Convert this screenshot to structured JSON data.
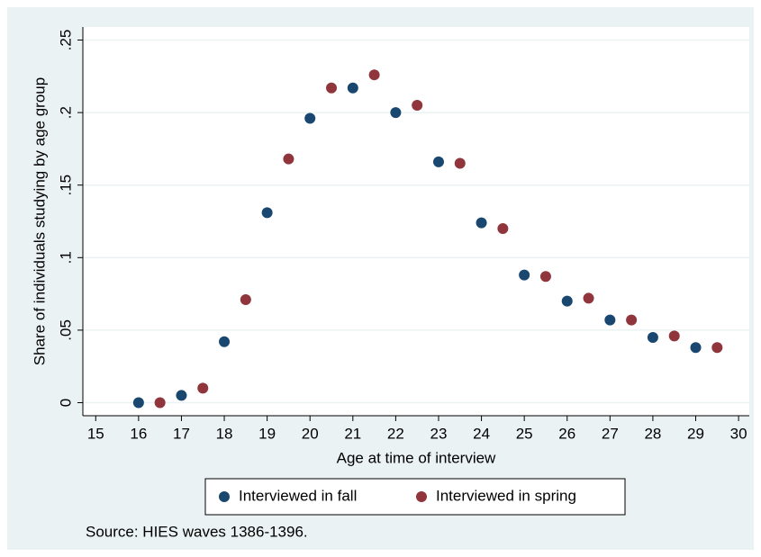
{
  "chart_data": {
    "type": "scatter",
    "x_label": "Age at time of interview",
    "y_label": "Share of individuals studying by age group",
    "note": "Source: HIES waves 1386-1396.",
    "xlim": [
      14.7,
      30.25
    ],
    "ylim": [
      -0.009,
      0.259
    ],
    "xticks": [
      15,
      16,
      17,
      18,
      19,
      20,
      21,
      22,
      23,
      24,
      25,
      26,
      27,
      28,
      29,
      30
    ],
    "yticks": [
      0,
      {
        "value": 0.05,
        "label": ".05"
      },
      {
        "value": 0.1,
        "label": ".1"
      },
      {
        "value": 0.15,
        "label": ".15"
      },
      {
        "value": 0.2,
        "label": ".2"
      },
      {
        "value": 0.25,
        "label": ".25"
      }
    ],
    "grid": true,
    "series": [
      {
        "name": "Interviewed in fall",
        "color": "#1a476f",
        "x": [
          16,
          17,
          18,
          19,
          20,
          21,
          22,
          23,
          24,
          25,
          26,
          27,
          28,
          29
        ],
        "values": [
          0.0,
          0.005,
          0.042,
          0.131,
          0.196,
          0.217,
          0.2,
          0.166,
          0.124,
          0.088,
          0.07,
          0.057,
          0.045,
          0.038
        ]
      },
      {
        "name": "Interviewed in spring",
        "color": "#90353b",
        "x": [
          16.5,
          17.5,
          18.5,
          19.5,
          20.5,
          21.5,
          22.5,
          23.5,
          24.5,
          25.5,
          26.5,
          27.5,
          28.5,
          29.5
        ],
        "values": [
          0.0,
          0.01,
          0.071,
          0.168,
          0.217,
          0.226,
          0.205,
          0.165,
          0.12,
          0.087,
          0.072,
          0.057,
          0.046,
          0.038
        ]
      }
    ]
  }
}
